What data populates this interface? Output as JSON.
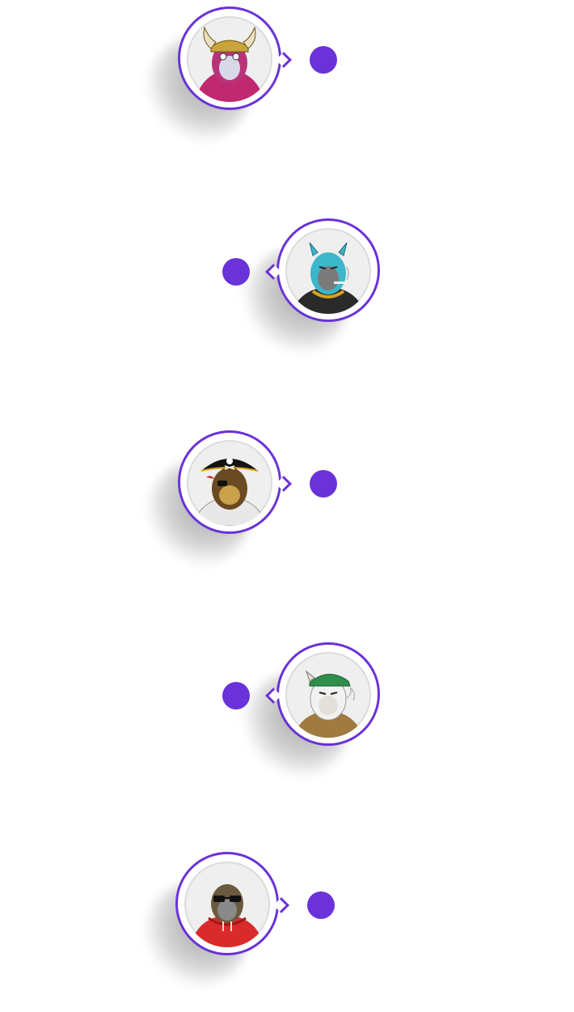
{
  "timeline": {
    "accent_color": "#6a32d8",
    "items": [
      {
        "avatar": "viking-ape-pink-icon",
        "side": "left"
      },
      {
        "avatar": "cyan-ape-smoking-icon",
        "side": "right"
      },
      {
        "avatar": "pirate-ape-icon",
        "side": "left"
      },
      {
        "avatar": "cap-ape-smoking-icon",
        "side": "right"
      },
      {
        "avatar": "hoodie-ape-sunglasses-icon",
        "side": "left"
      }
    ]
  }
}
